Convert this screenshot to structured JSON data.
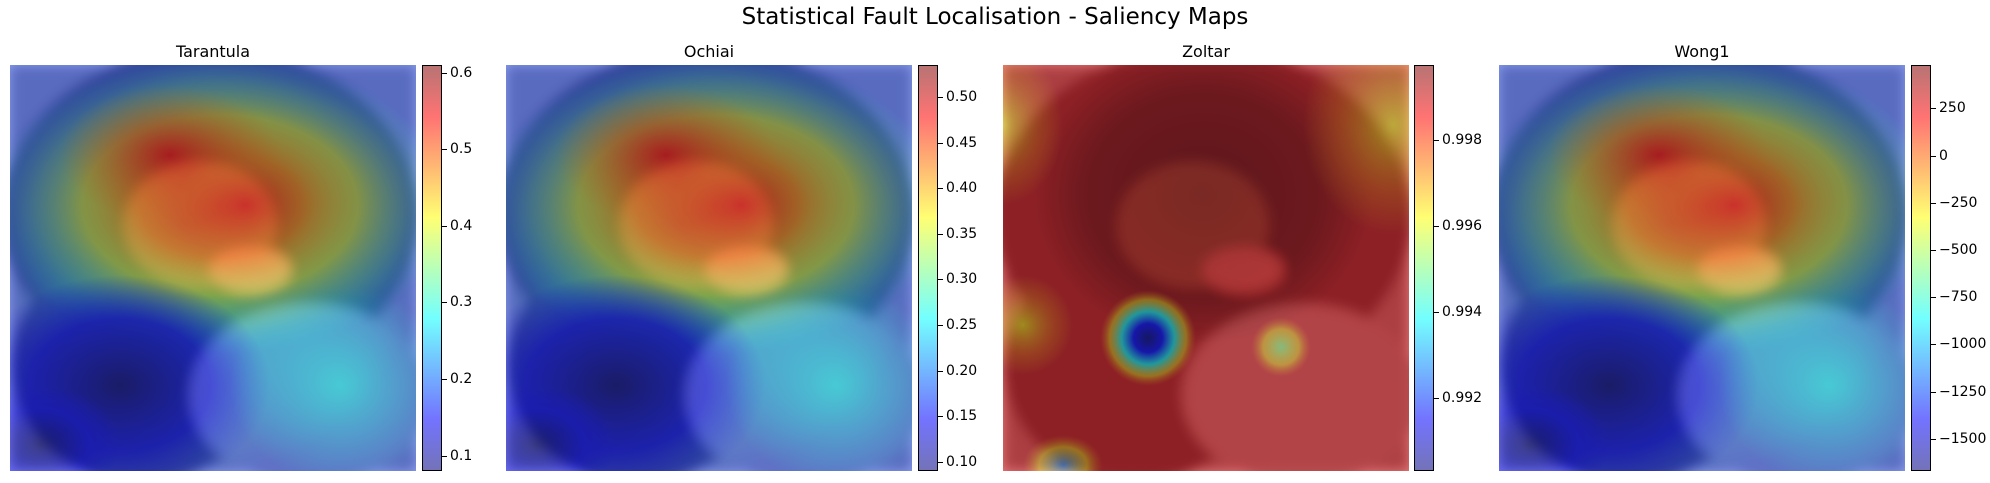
{
  "title": "Statistical Fault Localisation - Saliency Maps",
  "colors": {
    "jet": [
      "#00007f",
      "#0000ff",
      "#007fff",
      "#00ffff",
      "#7fff7f",
      "#ffff00",
      "#ff7f00",
      "#ff0000",
      "#7f0000"
    ],
    "fur": "#3b3f4a",
    "muzzle": "#8a6e60",
    "tongue": "#e48a8a",
    "ground": "#8c8f98"
  },
  "chart_data": [
    {
      "type": "heatmap",
      "title": "Tarantula",
      "colormap": "jet",
      "colorbar": {
        "min": 0.08,
        "max": 0.61,
        "ticks": [
          0.1,
          0.2,
          0.3,
          0.4,
          0.5,
          0.6
        ],
        "tick_labels": [
          "0.1",
          "0.2",
          "0.3",
          "0.4",
          "0.5",
          "0.6"
        ]
      }
    },
    {
      "type": "heatmap",
      "title": "Ochiai",
      "colormap": "jet",
      "colorbar": {
        "min": 0.09,
        "max": 0.535,
        "ticks": [
          0.1,
          0.15,
          0.2,
          0.25,
          0.3,
          0.35,
          0.4,
          0.45,
          0.5
        ],
        "tick_labels": [
          "0.10",
          "0.15",
          "0.20",
          "0.25",
          "0.30",
          "0.35",
          "0.40",
          "0.45",
          "0.50"
        ]
      }
    },
    {
      "type": "heatmap",
      "title": "Zoltar",
      "colormap": "jet",
      "colorbar": {
        "min": 0.9903,
        "max": 0.99975,
        "ticks": [
          0.992,
          0.994,
          0.996,
          0.998
        ],
        "tick_labels": [
          "0.992",
          "0.994",
          "0.996",
          "0.998"
        ]
      }
    },
    {
      "type": "heatmap",
      "title": "Wong1",
      "colormap": "jet",
      "colorbar": {
        "min": -1670,
        "max": 480,
        "ticks": [
          -1500,
          -1250,
          -1000,
          -750,
          -500,
          -250,
          0,
          250
        ],
        "tick_labels": [
          "−1500",
          "−1250",
          "−1000",
          "−750",
          "−500",
          "−250",
          "0",
          "250"
        ]
      }
    }
  ]
}
